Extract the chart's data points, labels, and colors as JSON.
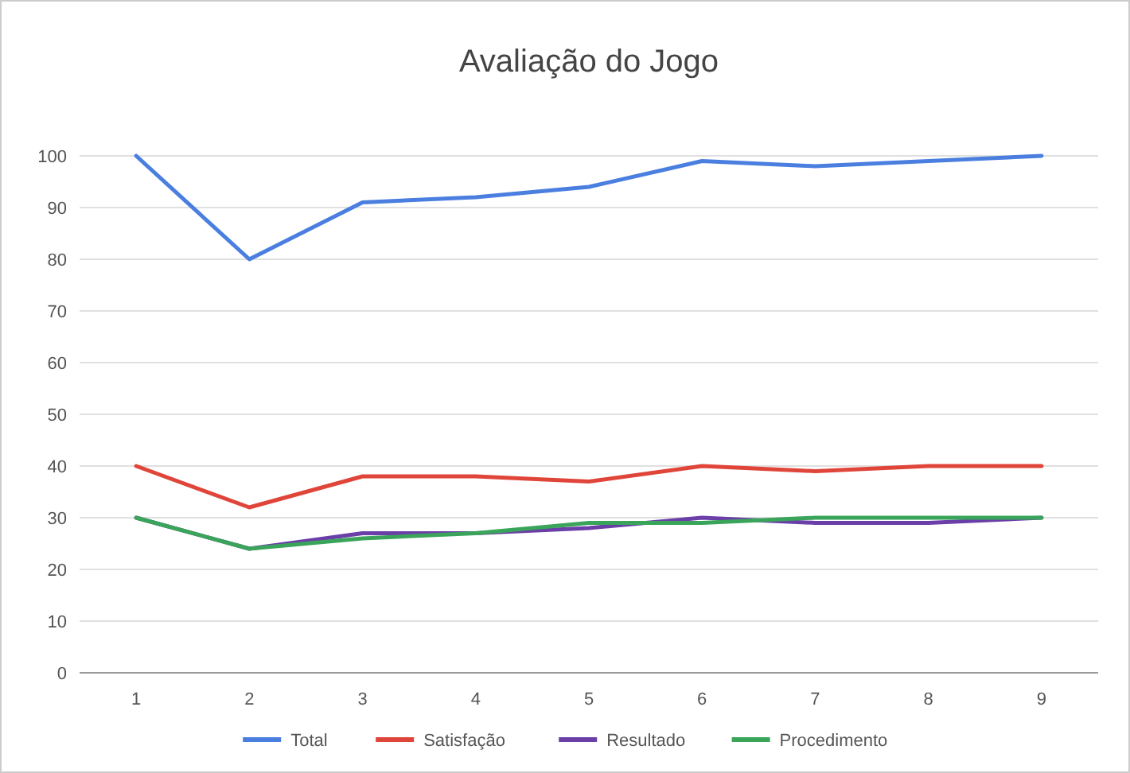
{
  "chart_data": {
    "type": "line",
    "title": "Avaliação do Jogo",
    "categories": [
      "1",
      "2",
      "3",
      "4",
      "5",
      "6",
      "7",
      "8",
      "9"
    ],
    "series": [
      {
        "name": "Total",
        "color": "#4a7fe0",
        "values": [
          100,
          80,
          91,
          92,
          94,
          99,
          98,
          99,
          100
        ]
      },
      {
        "name": "Satisfação",
        "color": "#e0453a",
        "values": [
          40,
          32,
          38,
          38,
          37,
          40,
          39,
          40,
          40
        ]
      },
      {
        "name": "Resultado",
        "color": "#6b3fa8",
        "values": [
          30,
          24,
          27,
          27,
          28,
          30,
          29,
          29,
          30
        ]
      },
      {
        "name": "Procedimento",
        "color": "#3aa55a",
        "values": [
          30,
          24,
          26,
          27,
          29,
          29,
          30,
          30,
          30
        ]
      }
    ],
    "ylim": [
      0,
      100
    ],
    "yticks": [
      0,
      10,
      20,
      30,
      40,
      50,
      60,
      70,
      80,
      90,
      100
    ],
    "grid": "y",
    "legend": "bottom",
    "marker": "none",
    "line_style": "solid"
  }
}
